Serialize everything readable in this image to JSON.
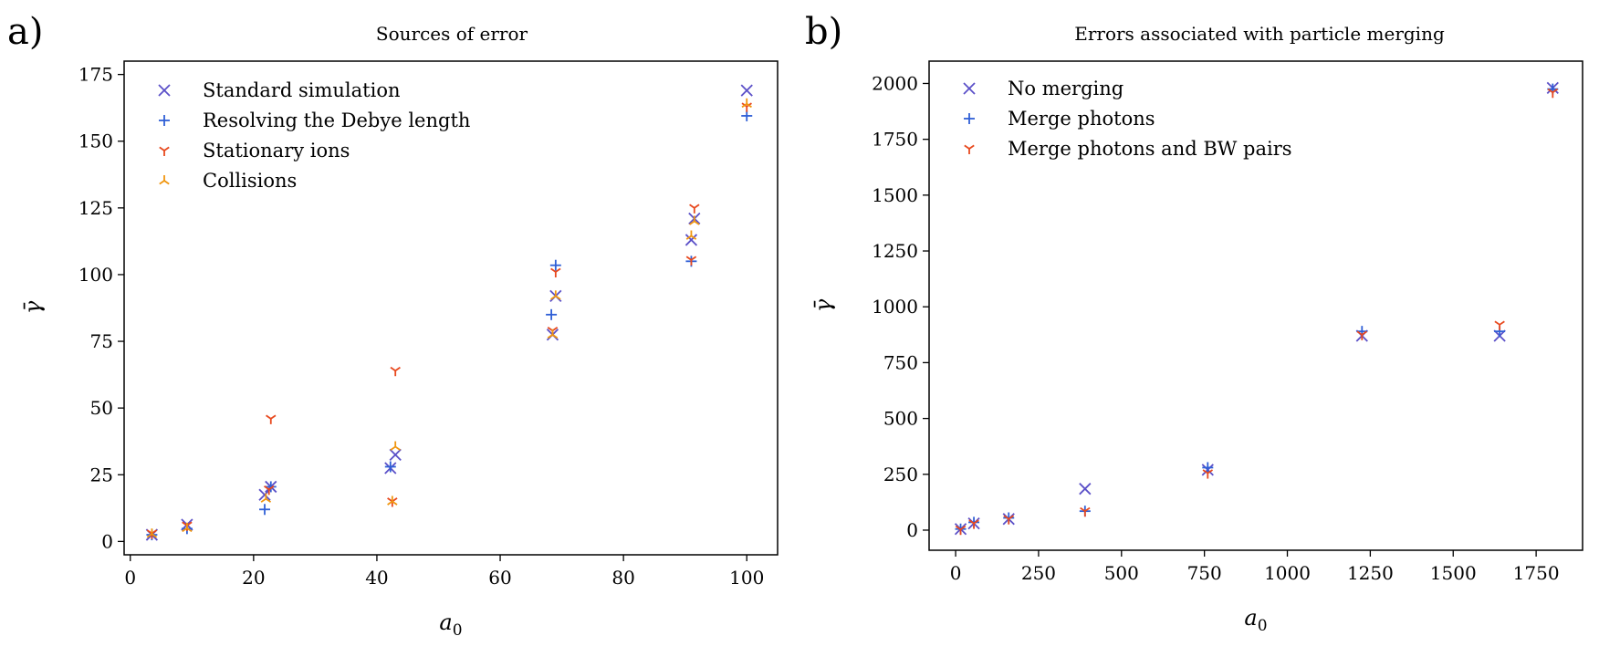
{
  "chart_data": [
    {
      "type": "scatter",
      "panel_label": "a)",
      "title": "Sources of error",
      "xlabel": "a0",
      "ylabel": "γ̄",
      "xlim": [
        -1,
        105
      ],
      "ylim": [
        -5,
        180
      ],
      "xticks": [
        0,
        20,
        40,
        60,
        80,
        100
      ],
      "yticks": [
        0,
        25,
        50,
        75,
        100,
        125,
        150,
        175
      ],
      "legend_position": "top-left",
      "series": [
        {
          "name": "Standard simulation",
          "marker": "x",
          "color": "#5b50c8",
          "points": [
            [
              3.5,
              2.5
            ],
            [
              9.2,
              6.3
            ],
            [
              21.8,
              17.5
            ],
            [
              22.8,
              20.5
            ],
            [
              42.2,
              27.5
            ],
            [
              43.0,
              32.5
            ],
            [
              68.5,
              77.5
            ],
            [
              69.0,
              92.0
            ],
            [
              91.0,
              113.0
            ],
            [
              91.5,
              121.0
            ],
            [
              100.0,
              169.0
            ]
          ]
        },
        {
          "name": "Resolving the Debye length",
          "marker": "+",
          "color": "#2f5fd6",
          "points": [
            [
              3.5,
              2.5
            ],
            [
              9.2,
              4.8
            ],
            [
              21.8,
              12.0
            ],
            [
              22.8,
              20.5
            ],
            [
              42.2,
              28.0
            ],
            [
              68.3,
              85.0
            ],
            [
              69.0,
              103.5
            ],
            [
              91.0,
              105.0
            ],
            [
              100.0,
              159.5
            ]
          ]
        },
        {
          "name": "Stationary ions",
          "marker": "tri_down",
          "color": "#e8491e",
          "points": [
            [
              3.5,
              3.0
            ],
            [
              9.2,
              6.0
            ],
            [
              22.5,
              19.5
            ],
            [
              22.8,
              46.0
            ],
            [
              42.5,
              15.0
            ],
            [
              43.0,
              64.0
            ],
            [
              68.5,
              79.0
            ],
            [
              69.0,
              101.0
            ],
            [
              91.0,
              105.5
            ],
            [
              91.5,
              125.0
            ],
            [
              100.0,
              163.0
            ]
          ]
        },
        {
          "name": "Collisions",
          "marker": "tri_up",
          "color": "#f0960f",
          "points": [
            [
              3.5,
              2.8
            ],
            [
              9.2,
              5.0
            ],
            [
              22.0,
              16.0
            ],
            [
              42.5,
              15.0
            ],
            [
              43.0,
              35.5
            ],
            [
              68.5,
              77.5
            ],
            [
              69.0,
              92.0
            ],
            [
              91.0,
              114.5
            ],
            [
              91.5,
              120.0
            ],
            [
              100.0,
              164.0
            ]
          ]
        }
      ]
    },
    {
      "type": "scatter",
      "panel_label": "b)",
      "title": "Errors associated with particle merging",
      "xlabel": "a0",
      "ylabel": "γ̄",
      "xlim": [
        -80,
        1890
      ],
      "ylim": [
        -90,
        2100
      ],
      "xticks": [
        0,
        250,
        500,
        750,
        1000,
        1250,
        1500,
        1750
      ],
      "yticks": [
        0,
        250,
        500,
        750,
        1000,
        1250,
        1500,
        1750,
        2000
      ],
      "legend_position": "top-left",
      "series": [
        {
          "name": "No merging",
          "marker": "x",
          "color": "#5b50c8",
          "points": [
            [
              15,
              5
            ],
            [
              55,
              30
            ],
            [
              160,
              50
            ],
            [
              390,
              185
            ],
            [
              760,
              270
            ],
            [
              1225,
              870
            ],
            [
              1640,
              870
            ],
            [
              1800,
              1980
            ]
          ]
        },
        {
          "name": "Merge photons",
          "marker": "+",
          "color": "#2f5fd6",
          "points": [
            [
              15,
              5
            ],
            [
              55,
              35
            ],
            [
              160,
              55
            ],
            [
              390,
              85
            ],
            [
              760,
              280
            ],
            [
              1225,
              890
            ],
            [
              1640,
              890
            ],
            [
              1800,
              1975
            ]
          ]
        },
        {
          "name": "Merge photons and BW pairs",
          "marker": "tri_down",
          "color": "#e8491e",
          "points": [
            [
              15,
              3
            ],
            [
              55,
              30
            ],
            [
              160,
              50
            ],
            [
              390,
              85
            ],
            [
              760,
              255
            ],
            [
              1225,
              875
            ],
            [
              1640,
              920
            ],
            [
              1800,
              1960
            ]
          ]
        }
      ]
    }
  ]
}
